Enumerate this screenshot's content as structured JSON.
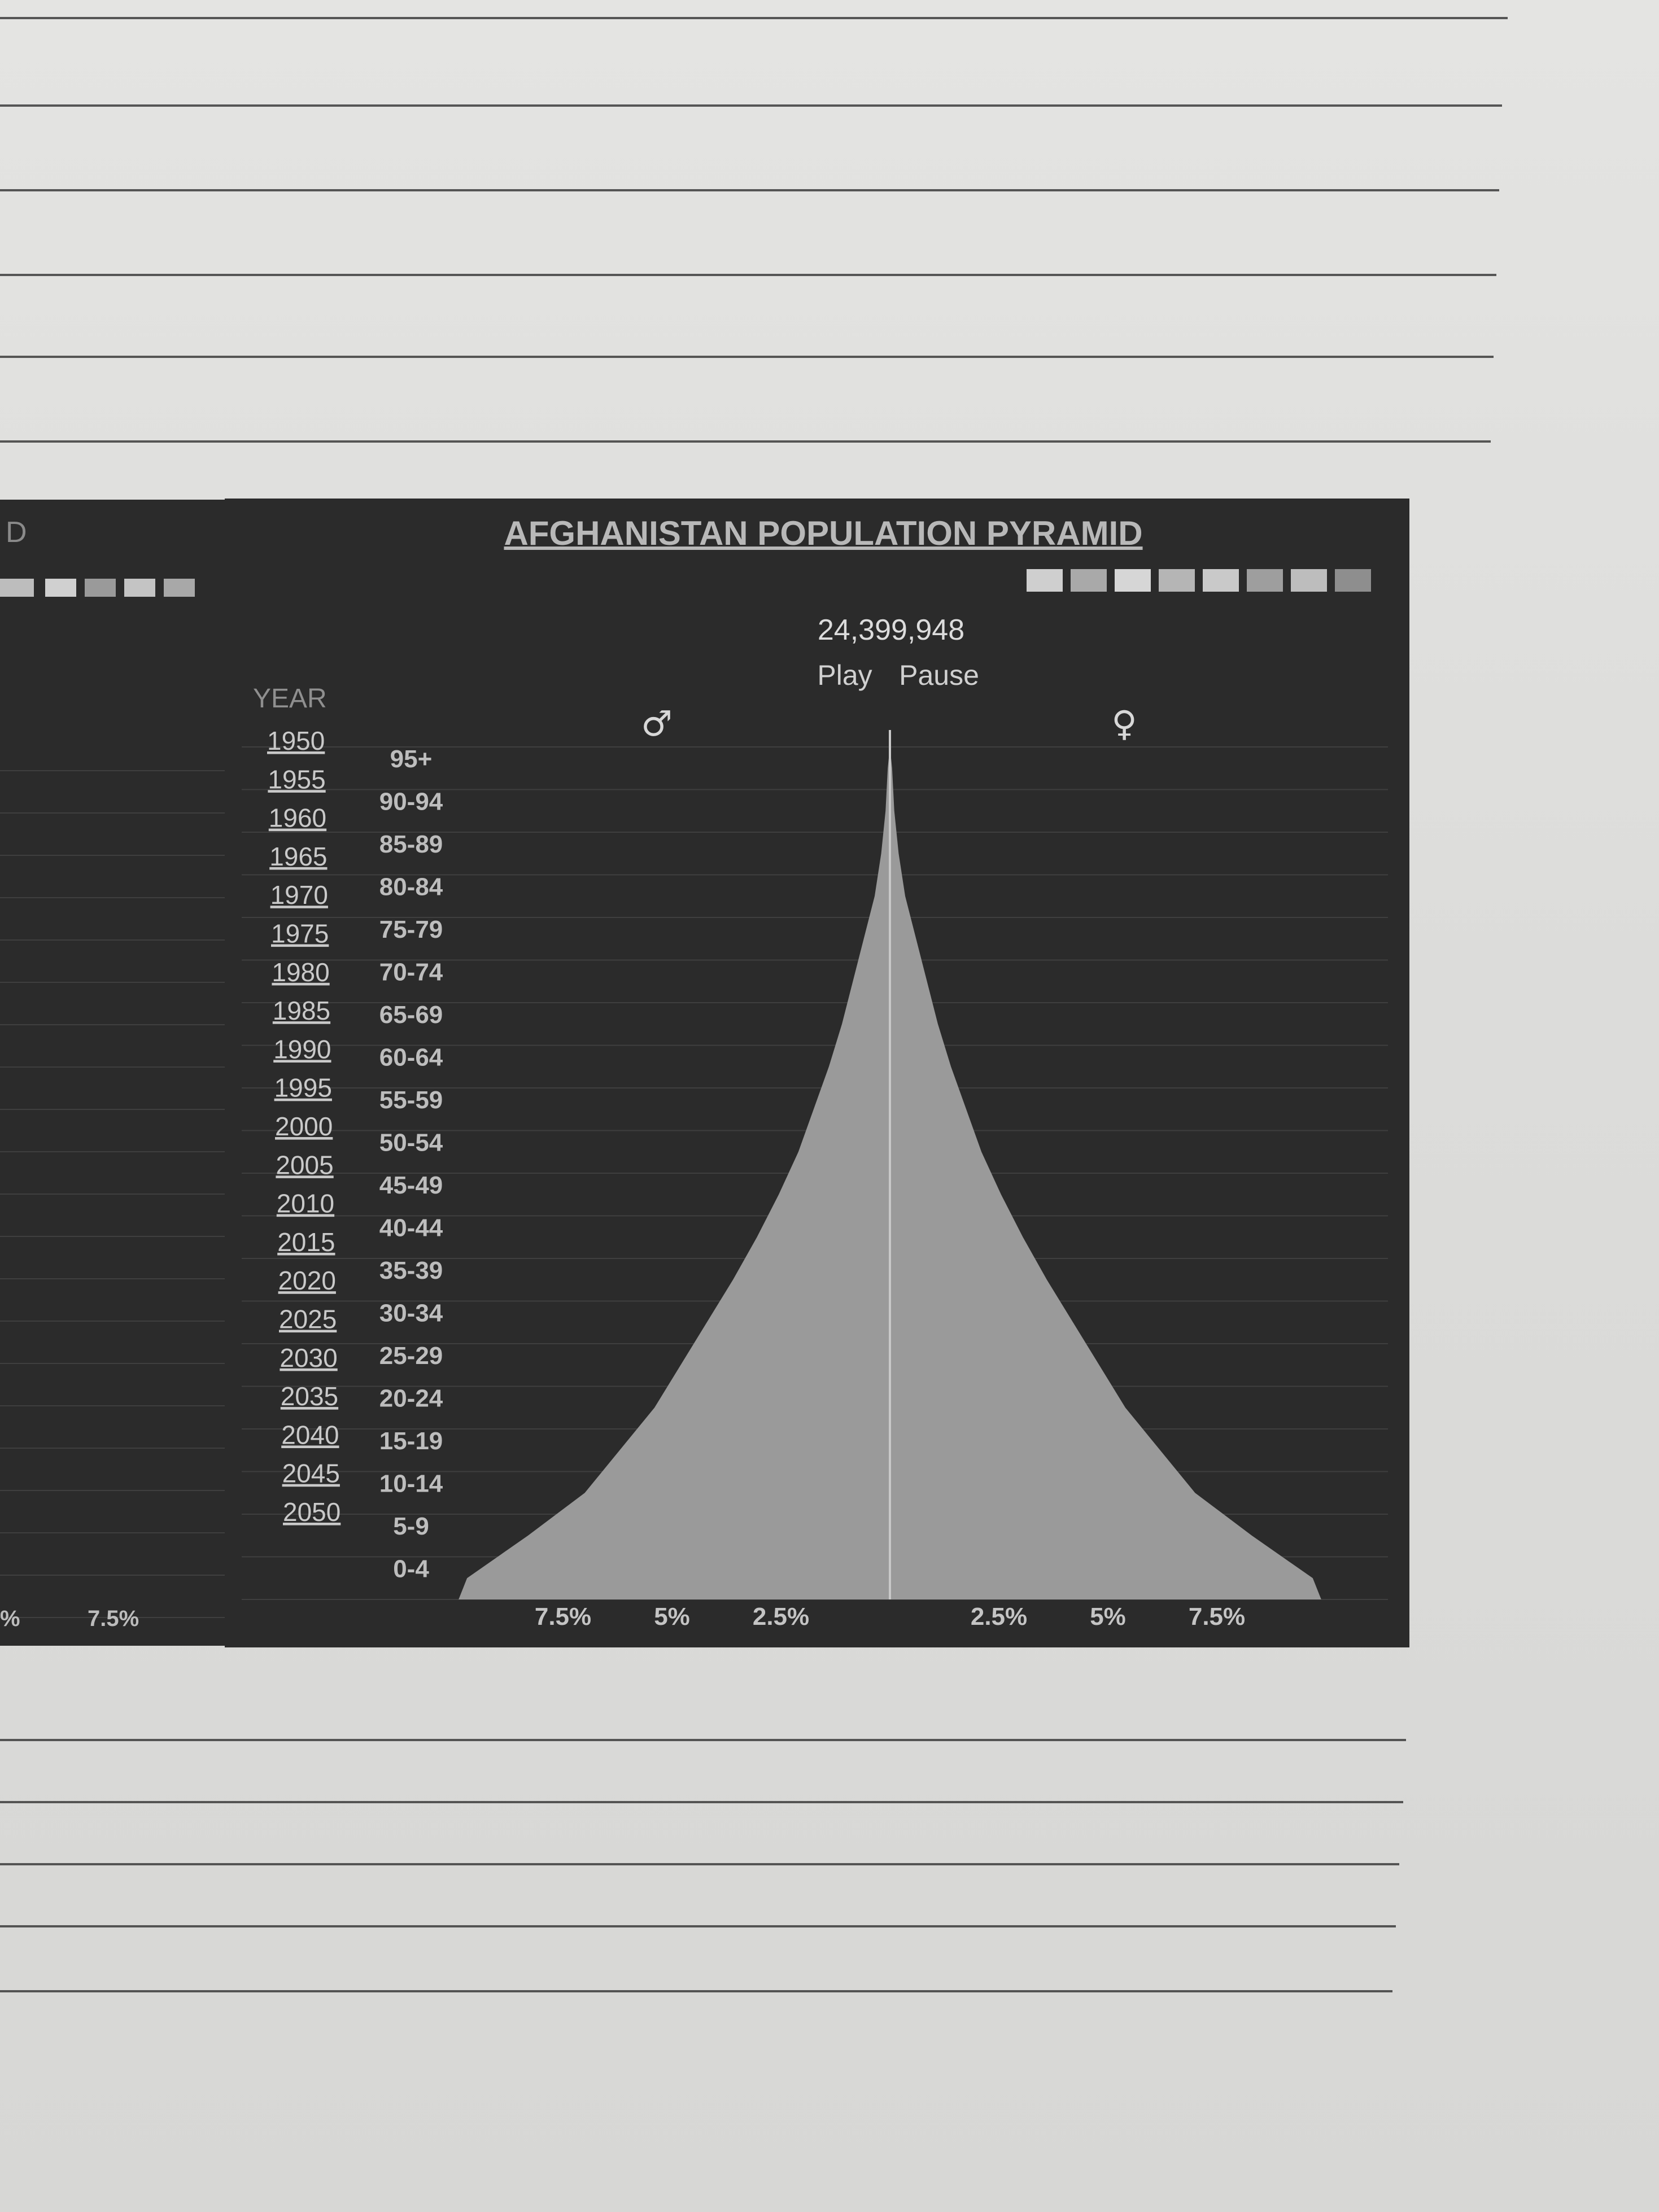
{
  "page": {
    "background": "#dcdcda",
    "panel_color": "#2b2b2b",
    "shape_color": "#9a9a9a"
  },
  "left_panel": {
    "title_fragment": "D",
    "tick_labels": [
      "%",
      "7.5%"
    ]
  },
  "chart_data": {
    "type": "area",
    "title": "AFGHANISTAN POPULATION PYRAMID",
    "population": "24,399,948",
    "controls": {
      "play": "Play",
      "pause": "Pause"
    },
    "year_header": "YEAR",
    "years": [
      "1950",
      "1955",
      "1960",
      "1965",
      "1970",
      "1975",
      "1980",
      "1985",
      "1990",
      "1995",
      "2000",
      "2005",
      "2010",
      "2015",
      "2020",
      "2025",
      "2030",
      "2035",
      "2040",
      "2045",
      "2050"
    ],
    "male_symbol": "♂",
    "female_symbol": "♀",
    "age_groups": [
      "95+",
      "90-94",
      "85-89",
      "80-84",
      "75-79",
      "70-74",
      "65-69",
      "60-64",
      "55-59",
      "50-54",
      "45-49",
      "40-44",
      "35-39",
      "30-34",
      "25-29",
      "20-24",
      "15-19",
      "10-14",
      "5-9",
      "0-4"
    ],
    "series": [
      {
        "name": "♂",
        "values": [
          0.05,
          0.1,
          0.2,
          0.35,
          0.6,
          0.85,
          1.1,
          1.4,
          1.75,
          2.1,
          2.55,
          3.05,
          3.6,
          4.2,
          4.8,
          5.4,
          6.2,
          7.0,
          8.3,
          9.7
        ]
      },
      {
        "name": "♀",
        "values": [
          0.05,
          0.1,
          0.2,
          0.35,
          0.6,
          0.85,
          1.1,
          1.4,
          1.75,
          2.1,
          2.55,
          3.05,
          3.6,
          4.2,
          4.8,
          5.4,
          6.2,
          7.0,
          8.3,
          9.7
        ]
      }
    ],
    "xlim": [
      -10,
      10
    ],
    "x_tick_labels": [
      "7.5%",
      "5%",
      "2.5%",
      "2.5%",
      "5%",
      "7.5%"
    ],
    "x_ticks": [
      -7.5,
      -5,
      -2.5,
      2.5,
      5,
      7.5
    ],
    "grid": true
  }
}
